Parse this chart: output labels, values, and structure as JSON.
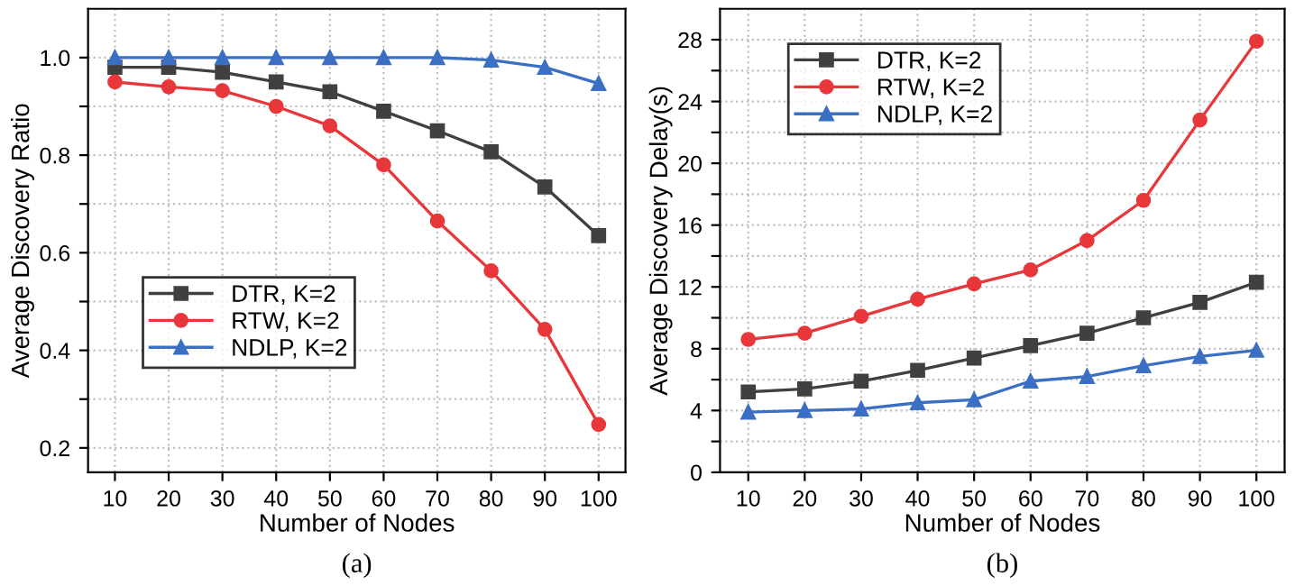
{
  "chart_data": [
    {
      "type": "line",
      "title": "(a)",
      "xlabel": "Number of Nodes",
      "ylabel": "Average Discovery Ratio",
      "x": [
        10,
        20,
        30,
        40,
        50,
        60,
        70,
        80,
        90,
        100
      ],
      "series": [
        {
          "name": "DTR, K=2",
          "color": "#404040",
          "marker": "square",
          "values": [
            0.98,
            0.98,
            0.97,
            0.95,
            0.93,
            0.89,
            0.85,
            0.807,
            0.735,
            0.635
          ]
        },
        {
          "name": "RTW, K=2",
          "color": "#e8373a",
          "marker": "circle",
          "values": [
            0.95,
            0.94,
            0.932,
            0.9,
            0.86,
            0.78,
            0.665,
            0.563,
            0.443,
            0.248
          ]
        },
        {
          "name": "NDLP, K=2",
          "color": "#3a6fc4",
          "marker": "triangle",
          "values": [
            1.0,
            1.0,
            1.0,
            1.0,
            1.0,
            1.0,
            1.0,
            0.995,
            0.98,
            0.947
          ]
        }
      ],
      "xlim": [
        5,
        105
      ],
      "xticks": [
        10,
        20,
        30,
        40,
        50,
        60,
        70,
        80,
        90,
        100
      ],
      "ylim": [
        0.15,
        1.1
      ],
      "yticks": [
        {
          "value": 0.2,
          "label": "0.2"
        },
        {
          "value": 0.3,
          "label": null
        },
        {
          "value": 0.4,
          "label": "0.4"
        },
        {
          "value": 0.5,
          "label": null
        },
        {
          "value": 0.6,
          "label": "0.6"
        },
        {
          "value": 0.7,
          "label": null
        },
        {
          "value": 0.8,
          "label": "0.8"
        },
        {
          "value": 0.9,
          "label": null
        },
        {
          "value": 1.0,
          "label": "1.0"
        }
      ],
      "grid": true,
      "legend": "center left",
      "line_style": "solid"
    },
    {
      "type": "line",
      "title": "(b)",
      "xlabel": "Number of Nodes",
      "ylabel": "Average Discovery Delay(s)",
      "x": [
        10,
        20,
        30,
        40,
        50,
        60,
        70,
        80,
        90,
        100
      ],
      "series": [
        {
          "name": "DTR, K=2",
          "color": "#404040",
          "marker": "square",
          "values": [
            5.2,
            5.4,
            5.9,
            6.6,
            7.4,
            8.2,
            9.0,
            10.0,
            11.0,
            12.3
          ]
        },
        {
          "name": "RTW, K=2",
          "color": "#e8373a",
          "marker": "circle",
          "values": [
            8.6,
            9.0,
            10.1,
            11.2,
            12.2,
            13.1,
            15.0,
            17.6,
            22.8,
            27.9
          ]
        },
        {
          "name": "NDLP, K=2",
          "color": "#3a6fc4",
          "marker": "triangle",
          "values": [
            3.9,
            4.0,
            4.1,
            4.5,
            4.7,
            5.9,
            6.2,
            6.9,
            7.5,
            7.9
          ]
        }
      ],
      "xlim": [
        5,
        105
      ],
      "xticks": [
        10,
        20,
        30,
        40,
        50,
        60,
        70,
        80,
        90,
        100
      ],
      "ylim": [
        0,
        30
      ],
      "yticks": [
        0,
        {
          "value": 2,
          "label": null
        },
        4,
        {
          "value": 6,
          "label": null
        },
        8,
        {
          "value": 10,
          "label": null
        },
        12,
        {
          "value": 14,
          "label": null
        },
        16,
        {
          "value": 18,
          "label": null
        },
        20,
        {
          "value": 22,
          "label": null
        },
        24,
        {
          "value": 26,
          "label": null
        },
        28
      ],
      "grid": true,
      "legend": "upper left",
      "line_style": "solid"
    }
  ]
}
